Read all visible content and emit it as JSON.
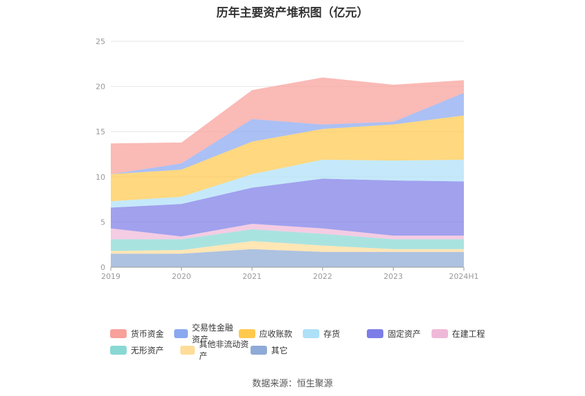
{
  "chart_data": {
    "type": "area",
    "stacked": true,
    "title": "历年主要资产堆积图（亿元）",
    "source": "数据来源：恒生聚源",
    "categories": [
      "2019",
      "2020",
      "2021",
      "2022",
      "2023",
      "2024H1"
    ],
    "yticks": [
      "0",
      "5",
      "10",
      "15",
      "20",
      "25"
    ],
    "ylim": [
      0,
      25
    ],
    "series": [
      {
        "name": "其它",
        "color": "#8eaad6",
        "values": [
          1.5,
          1.5,
          2.0,
          1.7,
          1.7,
          1.7
        ]
      },
      {
        "name": "其他非流动资产",
        "color": "#ffdd99",
        "values": [
          0.3,
          0.4,
          0.9,
          0.7,
          0.3,
          0.3
        ]
      },
      {
        "name": "无形资产",
        "color": "#88d8d4",
        "values": [
          1.3,
          1.2,
          1.3,
          1.3,
          1.1,
          1.1
        ]
      },
      {
        "name": "在建工程",
        "color": "#f0b8d8",
        "values": [
          1.2,
          0.3,
          0.6,
          0.6,
          0.4,
          0.4
        ]
      },
      {
        "name": "固定资产",
        "color": "#7d7de8",
        "values": [
          2.3,
          3.6,
          4.0,
          5.5,
          6.1,
          6.0
        ]
      },
      {
        "name": "存货",
        "color": "#aee0f8",
        "values": [
          0.7,
          0.8,
          1.5,
          2.1,
          2.2,
          2.4
        ]
      },
      {
        "name": "应收账款",
        "color": "#ffc94d",
        "values": [
          3.0,
          3.0,
          3.6,
          3.4,
          4.0,
          4.9
        ]
      },
      {
        "name": "交易性金融资产",
        "color": "#8aa8f0",
        "values": [
          0.0,
          0.7,
          2.5,
          0.5,
          0.3,
          2.5
        ]
      },
      {
        "name": "货币资金",
        "color": "#f8a09a",
        "values": [
          3.4,
          2.3,
          3.2,
          5.2,
          4.1,
          1.4
        ]
      }
    ],
    "legend": [
      [
        "货币资金",
        "交易性金融资产",
        "应收账款",
        "存货",
        "固定资产",
        "在建工程"
      ],
      [
        "无形资产",
        "其他非流动资产",
        "其它"
      ]
    ],
    "grid": true
  }
}
